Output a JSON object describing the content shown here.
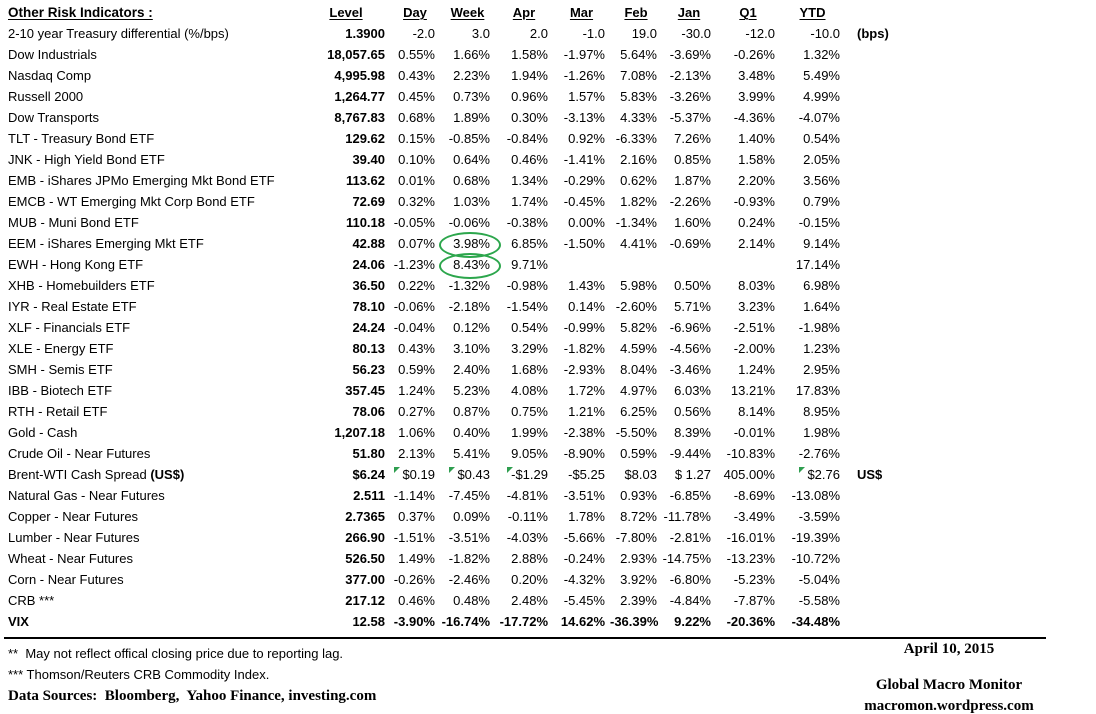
{
  "title": "Other Risk Indicators :",
  "columns": [
    "Level",
    "Day",
    "Week",
    "Apr",
    "Mar",
    "Feb",
    "Jan",
    "Q1",
    "YTD"
  ],
  "colors": {
    "background": "#FFFFFF",
    "text": "#000000",
    "annotation_green": "#2CA64C",
    "triangle_green": "#2E9E4F"
  },
  "rows": [
    {
      "label": "2-10 year Treasury differential (%/bps)",
      "level": "1.3900",
      "values": [
        "-2.0",
        "3.0",
        "2.0",
        "-1.0",
        "19.0",
        "-30.0",
        "-12.0",
        "-10.0"
      ],
      "suffix": "(bps)"
    },
    {
      "label": "Dow Industrials",
      "level": "18,057.65",
      "values": [
        "0.55%",
        "1.66%",
        "1.58%",
        "-1.97%",
        "5.64%",
        "-3.69%",
        "-0.26%",
        "1.32%"
      ]
    },
    {
      "label": "Nasdaq Comp",
      "level": "4,995.98",
      "values": [
        "0.43%",
        "2.23%",
        "1.94%",
        "-1.26%",
        "7.08%",
        "-2.13%",
        "3.48%",
        "5.49%"
      ]
    },
    {
      "label": "Russell 2000",
      "level": "1,264.77",
      "values": [
        "0.45%",
        "0.73%",
        "0.96%",
        "1.57%",
        "5.83%",
        "-3.26%",
        "3.99%",
        "4.99%"
      ]
    },
    {
      "label": "Dow Transports",
      "level": "8,767.83",
      "values": [
        "0.68%",
        "1.89%",
        "0.30%",
        "-3.13%",
        "4.33%",
        "-5.37%",
        "-4.36%",
        "-4.07%"
      ]
    },
    {
      "label": "TLT - Treasury Bond ETF",
      "level": "129.62",
      "values": [
        "0.15%",
        "-0.85%",
        "-0.84%",
        "0.92%",
        "-6.33%",
        "7.26%",
        "1.40%",
        "0.54%"
      ]
    },
    {
      "label": "JNK - High Yield Bond ETF",
      "level": "39.40",
      "values": [
        "0.10%",
        "0.64%",
        "0.46%",
        "-1.41%",
        "2.16%",
        "0.85%",
        "1.58%",
        "2.05%"
      ]
    },
    {
      "label": "EMB - iShares JPMo Emerging Mkt Bond ETF",
      "level": "113.62",
      "values": [
        "0.01%",
        "0.68%",
        "1.34%",
        "-0.29%",
        "0.62%",
        "1.87%",
        "2.20%",
        "3.56%"
      ]
    },
    {
      "label": "EMCB - WT Emerging Mkt Corp Bond ETF",
      "level": "72.69",
      "values": [
        "0.32%",
        "1.03%",
        "1.74%",
        "-0.45%",
        "1.82%",
        "-2.26%",
        "-0.93%",
        "0.79%"
      ]
    },
    {
      "label": "MUB - Muni Bond ETF",
      "level": "110.18",
      "values": [
        "-0.05%",
        "-0.06%",
        "-0.38%",
        "0.00%",
        "-1.34%",
        "1.60%",
        "0.24%",
        "-0.15%"
      ]
    },
    {
      "label": "EEM - iShares Emerging Mkt ETF",
      "level": "42.88",
      "values": [
        "0.07%",
        "3.98%",
        "6.85%",
        "-1.50%",
        "4.41%",
        "-0.69%",
        "2.14%",
        "9.14%"
      ],
      "ellipse_cols": [
        1
      ]
    },
    {
      "label": "EWH - Hong Kong ETF",
      "level": "24.06",
      "values": [
        "-1.23%",
        "8.43%",
        "9.71%",
        "",
        "",
        "",
        "",
        "17.14%"
      ],
      "ellipse_cols": [
        1
      ]
    },
    {
      "label": "XHB - Homebuilders ETF",
      "level": "36.50",
      "values": [
        "0.22%",
        "-1.32%",
        "-0.98%",
        "1.43%",
        "5.98%",
        "0.50%",
        "8.03%",
        "6.98%"
      ]
    },
    {
      "label": "IYR - Real Estate ETF",
      "level": "78.10",
      "values": [
        "-0.06%",
        "-2.18%",
        "-1.54%",
        "0.14%",
        "-2.60%",
        "5.71%",
        "3.23%",
        "1.64%"
      ]
    },
    {
      "label": "XLF - Financials ETF",
      "level": "24.24",
      "values": [
        "-0.04%",
        "0.12%",
        "0.54%",
        "-0.99%",
        "5.82%",
        "-6.96%",
        "-2.51%",
        "-1.98%"
      ]
    },
    {
      "label": "XLE - Energy ETF",
      "level": "80.13",
      "values": [
        "0.43%",
        "3.10%",
        "3.29%",
        "-1.82%",
        "4.59%",
        "-4.56%",
        "-2.00%",
        "1.23%"
      ]
    },
    {
      "label": "SMH - Semis ETF",
      "level": "56.23",
      "values": [
        "0.59%",
        "2.40%",
        "1.68%",
        "-2.93%",
        "8.04%",
        "-3.46%",
        "1.24%",
        "2.95%"
      ]
    },
    {
      "label": "IBB - Biotech ETF",
      "level": "357.45",
      "values": [
        "1.24%",
        "5.23%",
        "4.08%",
        "1.72%",
        "4.97%",
        "6.03%",
        "13.21%",
        "17.83%"
      ]
    },
    {
      "label": "RTH - Retail ETF",
      "level": "78.06",
      "values": [
        "0.27%",
        "0.87%",
        "0.75%",
        "1.21%",
        "6.25%",
        "0.56%",
        "8.14%",
        "8.95%"
      ]
    },
    {
      "label": "Gold - Cash",
      "level": "1,207.18",
      "values": [
        "1.06%",
        "0.40%",
        "1.99%",
        "-2.38%",
        "-5.50%",
        "8.39%",
        "-0.01%",
        "1.98%"
      ]
    },
    {
      "label": "Crude Oil - Near Futures",
      "level": "51.80",
      "values": [
        "2.13%",
        "5.41%",
        "9.05%",
        "-8.90%",
        "0.59%",
        "-9.44%",
        "-10.83%",
        "-2.76%"
      ]
    },
    {
      "label": "Brent-WTI Cash Spread ",
      "label_bold": "(US$)",
      "level": "$6.24",
      "values": [
        "$0.19",
        "$0.43",
        "-$1.29",
        "-$5.25",
        "$8.03",
        "$ 1.27",
        "405.00%",
        "$2.76"
      ],
      "suffix": "US$",
      "triangle_cols": [
        0,
        1,
        2,
        7
      ]
    },
    {
      "label": "Natural Gas - Near Futures",
      "level": "2.511",
      "values": [
        "-1.14%",
        "-7.45%",
        "-4.81%",
        "-3.51%",
        "0.93%",
        "-6.85%",
        "-8.69%",
        "-13.08%"
      ]
    },
    {
      "label": "Copper - Near Futures",
      "level": "2.7365",
      "values": [
        "0.37%",
        "0.09%",
        "-0.11%",
        "1.78%",
        "8.72%",
        "-11.78%",
        "-3.49%",
        "-3.59%"
      ]
    },
    {
      "label": "Lumber - Near Futures",
      "level": "266.90",
      "values": [
        "-1.51%",
        "-3.51%",
        "-4.03%",
        "-5.66%",
        "-7.80%",
        "-2.81%",
        "-16.01%",
        "-19.39%"
      ]
    },
    {
      "label": "Wheat - Near Futures",
      "level": "526.50",
      "values": [
        "1.49%",
        "-1.82%",
        "2.88%",
        "-0.24%",
        "2.93%",
        "-14.75%",
        "-13.23%",
        "-10.72%"
      ]
    },
    {
      "label": "Corn - Near Futures",
      "level": "377.00",
      "values": [
        "-0.26%",
        "-2.46%",
        "0.20%",
        "-4.32%",
        "3.92%",
        "-6.80%",
        "-5.23%",
        "-5.04%"
      ]
    },
    {
      "label": "CRB ***",
      "level": "217.12",
      "values": [
        "0.46%",
        "0.48%",
        "2.48%",
        "-5.45%",
        "2.39%",
        "-4.84%",
        "-7.87%",
        "-5.58%"
      ]
    },
    {
      "label": "VIX",
      "level": "12.58",
      "values": [
        "-3.90%",
        "-16.74%",
        "-17.72%",
        "14.62%",
        "-36.39%",
        "9.22%",
        "-20.36%",
        "-34.48%"
      ],
      "bold_row": true
    }
  ],
  "footnotes": {
    "reporting_lag": "**  May not reflect offical closing price due to reporting lag.",
    "crb_index": "*** Thomson/Reuters CRB Commodity Index.",
    "data_sources": "Data Sources:  Bloomberg,  Yahoo Finance, investing.com"
  },
  "footer": {
    "date": "April 10, 2015",
    "brand": "Global Macro Monitor",
    "site": "macromon.wordpress.com"
  }
}
